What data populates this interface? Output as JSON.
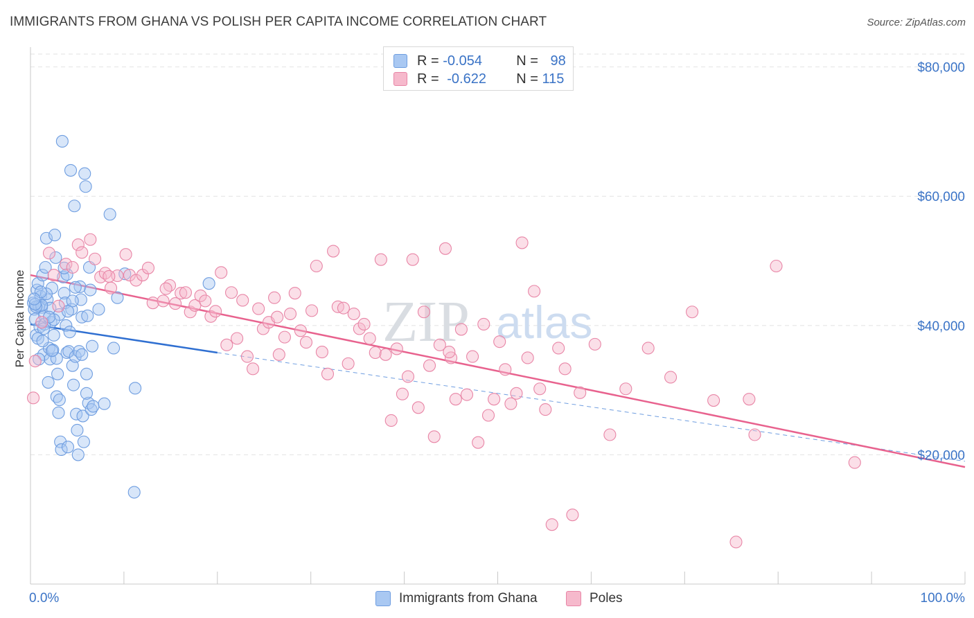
{
  "title": "IMMIGRANTS FROM GHANA VS POLISH PER CAPITA INCOME CORRELATION CHART",
  "source": "Source: ZipAtlas.com",
  "watermark": {
    "zip": "ZIP",
    "atlas": "atlas"
  },
  "legend": {
    "rows": [
      {
        "r_label": "R =",
        "r_value": "-0.054",
        "n_label": "N =",
        "n_value": "98",
        "color": "#a9c8f2",
        "border": "#6e9de0"
      },
      {
        "r_label": "R =",
        "r_value": "-0.622",
        "n_label": "N =",
        "n_value": "115",
        "color": "#f6b9cc",
        "border": "#e885a6"
      }
    ]
  },
  "bottom_legend": [
    {
      "label": "Immigrants from Ghana",
      "color": "#a9c8f2",
      "border": "#6e9de0"
    },
    {
      "label": "Poles",
      "color": "#f6b9cc",
      "border": "#e885a6"
    }
  ],
  "chart_data": {
    "type": "scatter",
    "title": "IMMIGRANTS FROM GHANA VS POLISH PER CAPITA INCOME CORRELATION CHART",
    "xlabel": "",
    "ylabel": "Per Capita Income",
    "xlim": [
      0,
      100
    ],
    "ylim": [
      0,
      82000
    ],
    "x_tick_labels": [
      "0.0%",
      "100.0%"
    ],
    "y_ticks": [
      20000,
      40000,
      60000,
      80000
    ],
    "y_tick_labels": [
      "$20,000",
      "$40,000",
      "$60,000",
      "$80,000"
    ],
    "grid": true,
    "series": [
      {
        "name": "Immigrants from Ghana",
        "color": "#6e9de0",
        "fill": "#a9c8f2",
        "trend": {
          "x": [
            0,
            20
          ],
          "y": [
            40200,
            35800
          ],
          "color": "#2f6fd1"
        },
        "trend_dashed": {
          "x": [
            20,
            100
          ],
          "y": [
            35800,
            19000
          ],
          "color": "#6e9de0"
        },
        "points": [
          [
            0.3,
            43500
          ],
          [
            0.4,
            42500
          ],
          [
            0.5,
            41000
          ],
          [
            0.6,
            38500
          ],
          [
            0.7,
            45500
          ],
          [
            0.8,
            46500
          ],
          [
            0.9,
            43000
          ],
          [
            1.0,
            39800
          ],
          [
            1.1,
            44500
          ],
          [
            1.2,
            42800
          ],
          [
            1.3,
            47800
          ],
          [
            1.4,
            35500
          ],
          [
            1.5,
            41500
          ],
          [
            1.6,
            49000
          ],
          [
            1.7,
            53500
          ],
          [
            1.8,
            44000
          ],
          [
            1.9,
            31200
          ],
          [
            2.0,
            36500
          ],
          [
            2.1,
            34800
          ],
          [
            2.2,
            40500
          ],
          [
            2.3,
            45800
          ],
          [
            2.4,
            36200
          ],
          [
            2.5,
            38500
          ],
          [
            2.6,
            54000
          ],
          [
            2.7,
            50500
          ],
          [
            2.8,
            29000
          ],
          [
            2.9,
            32500
          ],
          [
            3.0,
            26500
          ],
          [
            3.1,
            28500
          ],
          [
            3.2,
            22000
          ],
          [
            3.3,
            20800
          ],
          [
            3.4,
            68500
          ],
          [
            3.5,
            47500
          ],
          [
            3.6,
            45000
          ],
          [
            3.7,
            43500
          ],
          [
            3.8,
            40000
          ],
          [
            3.9,
            35800
          ],
          [
            4.0,
            21200
          ],
          [
            4.1,
            36000
          ],
          [
            4.2,
            39000
          ],
          [
            4.3,
            64000
          ],
          [
            4.4,
            42500
          ],
          [
            4.5,
            33800
          ],
          [
            4.6,
            30800
          ],
          [
            4.7,
            58500
          ],
          [
            4.8,
            35200
          ],
          [
            4.9,
            26300
          ],
          [
            5.0,
            23800
          ],
          [
            5.1,
            20000
          ],
          [
            5.2,
            36000
          ],
          [
            5.3,
            46000
          ],
          [
            5.4,
            44000
          ],
          [
            5.5,
            41300
          ],
          [
            5.6,
            26000
          ],
          [
            5.7,
            22000
          ],
          [
            5.8,
            63500
          ],
          [
            5.9,
            61500
          ],
          [
            6.0,
            32500
          ],
          [
            6.1,
            41500
          ],
          [
            6.2,
            28000
          ],
          [
            6.3,
            49000
          ],
          [
            6.4,
            45500
          ],
          [
            6.5,
            27000
          ],
          [
            6.6,
            36800
          ],
          [
            6.7,
            27500
          ],
          [
            7.3,
            42500
          ],
          [
            7.9,
            27900
          ],
          [
            8.5,
            57200
          ],
          [
            8.9,
            36500
          ],
          [
            9.3,
            44300
          ],
          [
            10.1,
            48000
          ],
          [
            11.1,
            14200
          ],
          [
            11.2,
            30300
          ],
          [
            19.1,
            46500
          ],
          [
            0.9,
            34800
          ],
          [
            1.5,
            40200
          ],
          [
            2.1,
            42700
          ],
          [
            4.5,
            43800
          ],
          [
            1.2,
            43100
          ],
          [
            0.6,
            42900
          ],
          [
            2.8,
            34900
          ],
          [
            1.4,
            39500
          ],
          [
            3.9,
            47900
          ],
          [
            0.8,
            38000
          ],
          [
            2.3,
            36100
          ],
          [
            4.8,
            45900
          ],
          [
            3.1,
            41700
          ],
          [
            1.7,
            44900
          ],
          [
            0.5,
            43300
          ],
          [
            2.5,
            40900
          ],
          [
            5.5,
            35500
          ],
          [
            1.1,
            45200
          ],
          [
            3.6,
            48900
          ],
          [
            0.4,
            44100
          ],
          [
            2.0,
            41300
          ],
          [
            6.0,
            29500
          ],
          [
            1.3,
            37600
          ],
          [
            4.0,
            42200
          ]
        ]
      },
      {
        "name": "Poles",
        "color": "#e885a6",
        "fill": "#f6b9cc",
        "trend": {
          "x": [
            0,
            100
          ],
          "y": [
            47800,
            18100
          ],
          "color": "#e8628e"
        },
        "points": [
          [
            0.3,
            28800
          ],
          [
            0.5,
            34500
          ],
          [
            1.2,
            40500
          ],
          [
            2.0,
            51200
          ],
          [
            2.5,
            47800
          ],
          [
            3.0,
            43000
          ],
          [
            3.8,
            49500
          ],
          [
            4.5,
            49000
          ],
          [
            5.1,
            52500
          ],
          [
            5.5,
            51300
          ],
          [
            6.4,
            53300
          ],
          [
            6.9,
            50300
          ],
          [
            7.5,
            47500
          ],
          [
            8.0,
            48100
          ],
          [
            8.6,
            45800
          ],
          [
            9.3,
            47700
          ],
          [
            10.2,
            51000
          ],
          [
            10.6,
            47800
          ],
          [
            11.3,
            47000
          ],
          [
            12.0,
            47800
          ],
          [
            12.6,
            48900
          ],
          [
            13.1,
            43500
          ],
          [
            14.2,
            43800
          ],
          [
            14.9,
            46200
          ],
          [
            15.5,
            43400
          ],
          [
            16.1,
            45000
          ],
          [
            16.6,
            45100
          ],
          [
            17.1,
            42100
          ],
          [
            17.6,
            43100
          ],
          [
            18.2,
            44600
          ],
          [
            18.7,
            43800
          ],
          [
            19.3,
            41400
          ],
          [
            19.8,
            42200
          ],
          [
            20.4,
            48200
          ],
          [
            21.0,
            37000
          ],
          [
            21.5,
            45100
          ],
          [
            22.1,
            38000
          ],
          [
            22.7,
            43900
          ],
          [
            23.2,
            35200
          ],
          [
            23.8,
            33300
          ],
          [
            24.4,
            42600
          ],
          [
            24.9,
            39500
          ],
          [
            25.5,
            40500
          ],
          [
            26.1,
            44300
          ],
          [
            26.6,
            35500
          ],
          [
            27.2,
            38200
          ],
          [
            27.8,
            41800
          ],
          [
            28.3,
            45000
          ],
          [
            28.9,
            39200
          ],
          [
            29.5,
            37400
          ],
          [
            30.1,
            42300
          ],
          [
            30.6,
            49200
          ],
          [
            31.2,
            35900
          ],
          [
            31.8,
            32500
          ],
          [
            32.4,
            51500
          ],
          [
            32.9,
            42900
          ],
          [
            33.5,
            42700
          ],
          [
            34.0,
            34100
          ],
          [
            34.6,
            41800
          ],
          [
            35.2,
            39500
          ],
          [
            35.7,
            40200
          ],
          [
            36.3,
            38000
          ],
          [
            36.9,
            35800
          ],
          [
            37.5,
            50200
          ],
          [
            38.0,
            35500
          ],
          [
            38.6,
            25300
          ],
          [
            39.2,
            36400
          ],
          [
            39.8,
            29400
          ],
          [
            40.4,
            32100
          ],
          [
            40.9,
            50200
          ],
          [
            41.5,
            27300
          ],
          [
            42.1,
            42100
          ],
          [
            42.7,
            33800
          ],
          [
            43.2,
            22800
          ],
          [
            43.8,
            37000
          ],
          [
            44.4,
            51900
          ],
          [
            45.0,
            35000
          ],
          [
            45.5,
            28600
          ],
          [
            46.1,
            39400
          ],
          [
            46.7,
            29300
          ],
          [
            47.3,
            35200
          ],
          [
            47.9,
            21900
          ],
          [
            48.5,
            40200
          ],
          [
            49.0,
            26100
          ],
          [
            49.6,
            28600
          ],
          [
            50.2,
            37500
          ],
          [
            50.8,
            33200
          ],
          [
            51.4,
            27900
          ],
          [
            52.0,
            29500
          ],
          [
            52.6,
            52800
          ],
          [
            53.2,
            35000
          ],
          [
            53.9,
            45300
          ],
          [
            54.5,
            30200
          ],
          [
            55.1,
            27000
          ],
          [
            55.8,
            9200
          ],
          [
            56.5,
            36500
          ],
          [
            57.2,
            33300
          ],
          [
            58.0,
            10700
          ],
          [
            58.8,
            29600
          ],
          [
            60.4,
            37100
          ],
          [
            62.0,
            23100
          ],
          [
            63.7,
            30200
          ],
          [
            66.1,
            36500
          ],
          [
            68.5,
            32000
          ],
          [
            70.8,
            42100
          ],
          [
            73.1,
            28400
          ],
          [
            75.5,
            6500
          ],
          [
            76.9,
            28600
          ],
          [
            77.5,
            23100
          ],
          [
            79.8,
            49200
          ],
          [
            88.2,
            18800
          ],
          [
            44.8,
            35900
          ],
          [
            26.4,
            41300
          ],
          [
            14.5,
            45700
          ],
          [
            8.4,
            47600
          ]
        ]
      }
    ]
  }
}
